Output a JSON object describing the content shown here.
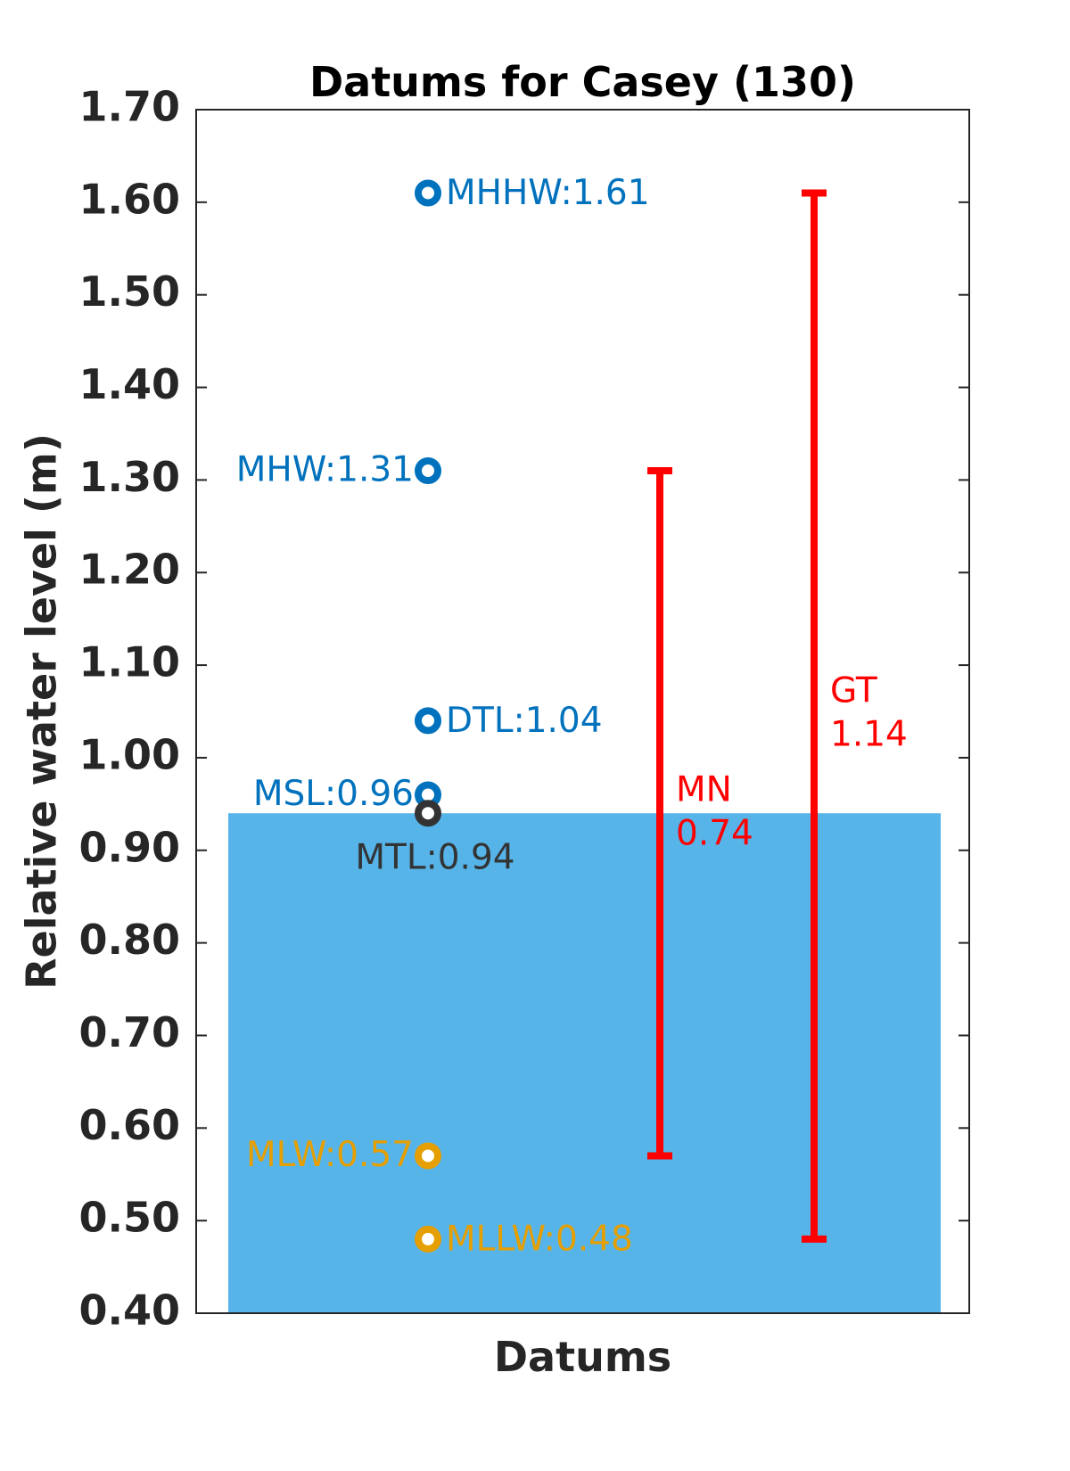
{
  "chart_data": {
    "type": "scatter",
    "title": "Datums for Casey (130)",
    "xlabel": "Datums",
    "ylabel": "Relative water level (m)",
    "ylim": [
      0.4,
      1.7
    ],
    "yticks": [
      "0.40",
      "0.50",
      "0.60",
      "0.70",
      "0.80",
      "0.90",
      "1.00",
      "1.10",
      "1.20",
      "1.30",
      "1.40",
      "1.50",
      "1.60",
      "1.70"
    ],
    "grid": false,
    "legend": "none",
    "colors": {
      "high": "#0072BD",
      "mid": "#333333",
      "low": "#E69F00",
      "range": "#FF0000",
      "fill": "#56B4E9"
    },
    "fill_band": {
      "from": 0.4,
      "to": 0.94
    },
    "datums": [
      {
        "name": "MHHW",
        "value": 1.61,
        "label": "MHHW:1.61",
        "group": "high",
        "label_side": "right"
      },
      {
        "name": "MHW",
        "value": 1.31,
        "label": "MHW:1.31",
        "group": "high",
        "label_side": "left"
      },
      {
        "name": "DTL",
        "value": 1.04,
        "label": "DTL:1.04",
        "group": "high",
        "label_side": "right"
      },
      {
        "name": "MSL",
        "value": 0.96,
        "label": "MSL:0.96",
        "group": "high",
        "label_side": "left"
      },
      {
        "name": "MTL",
        "value": 0.94,
        "label": "MTL:0.94",
        "group": "mid",
        "label_side": "below"
      },
      {
        "name": "MLW",
        "value": 0.57,
        "label": "MLW:0.57",
        "group": "low",
        "label_side": "left"
      },
      {
        "name": "MLLW",
        "value": 0.48,
        "label": "MLLW:0.48",
        "group": "low",
        "label_side": "right"
      }
    ],
    "ranges": [
      {
        "name": "MN",
        "from": 0.57,
        "to": 1.31,
        "label_line1": "MN",
        "label_line2": "0.74"
      },
      {
        "name": "GT",
        "from": 0.48,
        "to": 1.61,
        "label_line1": "GT",
        "label_line2": "1.14"
      }
    ]
  }
}
